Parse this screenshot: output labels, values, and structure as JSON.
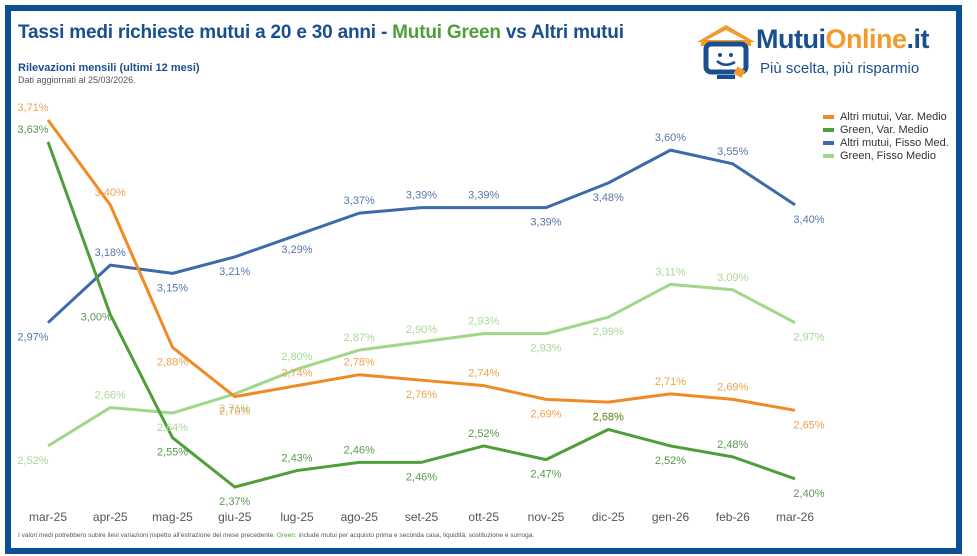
{
  "header": {
    "title_part1": "Tassi medi richieste mutui a 20 e 30 anni - ",
    "title_green": "Mutui Green",
    "title_part2": " vs Altri mutui",
    "subtitle": "Rilevazioni mensili (ultimi 12 mesi)",
    "updated": "Dati aggiornati al 25/03/2026."
  },
  "logo": {
    "brand_part1": "Mutui",
    "brand_part2": "Online",
    "brand_part3": ".it",
    "tagline": "Più scelta, più risparmio",
    "icon": "house-monitor-icon"
  },
  "footnote": {
    "part1": "I valori medi potrebbero subire lievi variazioni rispetto all'estrazione del mese precedente. ",
    "green_label": "Green:",
    "part2": " include mutui per acquisto prima e seconda casa, liquidità, sostituzione e surroga."
  },
  "colors": {
    "frame": "#0b4f96",
    "title": "#1a4f8f",
    "green_accent": "#4f9e3a"
  },
  "chart_data": {
    "type": "line",
    "title": "Tassi medi richieste mutui a 20 e 30 anni - Mutui Green vs Altri mutui",
    "xlabel": "",
    "ylabel": "",
    "ylim": [
      2.37,
      3.71
    ],
    "grid": false,
    "legend_position": "right",
    "categories": [
      "mar-25",
      "apr-25",
      "mag-25",
      "giu-25",
      "lug-25",
      "ago-25",
      "set-25",
      "ott-25",
      "nov-25",
      "dic-25",
      "gen-26",
      "feb-26",
      "mar-26"
    ],
    "series": [
      {
        "name": "Altri mutui, Var. Medio",
        "color": "#f08a24",
        "label_color": "#f0a050",
        "values": [
          3.71,
          3.4,
          2.88,
          2.7,
          2.74,
          2.78,
          2.76,
          2.74,
          2.69,
          2.68,
          2.71,
          2.69,
          2.65
        ],
        "labels": [
          "3,71%",
          "3,40%",
          "2,88%",
          "2,70%",
          "2,74%",
          "2,78%",
          "2,76%",
          "2,74%",
          "2,69%",
          "2,68%",
          "2,71%",
          "2,69%",
          "2,65%"
        ],
        "label_pos": [
          "above",
          "above",
          "below",
          "below",
          "above",
          "above",
          "below",
          "above",
          "below",
          "below",
          "above",
          "above",
          "below"
        ]
      },
      {
        "name": "Green, Var. Medio",
        "color": "#4f9e3a",
        "label_color": "#5a9a50",
        "values": [
          3.63,
          3.0,
          2.55,
          2.37,
          2.43,
          2.46,
          2.46,
          2.52,
          2.47,
          2.58,
          2.52,
          2.48,
          2.4
        ],
        "labels": [
          "3,63%",
          "3,00%",
          "2,55%",
          "2,37%",
          "2,43%",
          "2,46%",
          "2,46%",
          "2,52%",
          "2,47%",
          "2,58%",
          "2,52%",
          "2,48%",
          "2,40%"
        ],
        "label_pos": [
          "above",
          "left",
          "below",
          "below",
          "above",
          "above",
          "below",
          "above",
          "below",
          "above",
          "below",
          "above",
          "below"
        ]
      },
      {
        "name": "Altri mutui, Fisso Med.",
        "color": "#3d6aab",
        "label_color": "#5878a8",
        "values": [
          2.97,
          3.18,
          3.15,
          3.21,
          3.29,
          3.37,
          3.39,
          3.39,
          3.39,
          3.48,
          3.6,
          3.55,
          3.4
        ],
        "labels": [
          "2,97%",
          "3,18%",
          "3,15%",
          "3,21%",
          "3,29%",
          "3,37%",
          "3,39%",
          "3,39%",
          "3,39%",
          "3,48%",
          "3,60%",
          "3,55%",
          "3,40%"
        ],
        "label_pos": [
          "below",
          "above",
          "below",
          "below",
          "below",
          "above",
          "above",
          "above",
          "below",
          "below",
          "above",
          "above",
          "below"
        ]
      },
      {
        "name": "Green, Fisso Medio",
        "color": "#9fd88a",
        "label_color": "#a8d898",
        "values": [
          2.52,
          2.66,
          2.64,
          2.71,
          2.8,
          2.87,
          2.9,
          2.93,
          2.93,
          2.99,
          3.11,
          3.09,
          2.97
        ],
        "labels": [
          "2,52%",
          "2,66%",
          "2,64%",
          "2,71%",
          "2,80%",
          "2,87%",
          "2,90%",
          "2,93%",
          "2,93%",
          "2,99%",
          "3,11%",
          "3,09%",
          "2,97%"
        ],
        "label_pos": [
          "below",
          "above",
          "below",
          "below",
          "above",
          "above",
          "above",
          "above",
          "below",
          "below",
          "above",
          "above",
          "below"
        ]
      }
    ]
  }
}
